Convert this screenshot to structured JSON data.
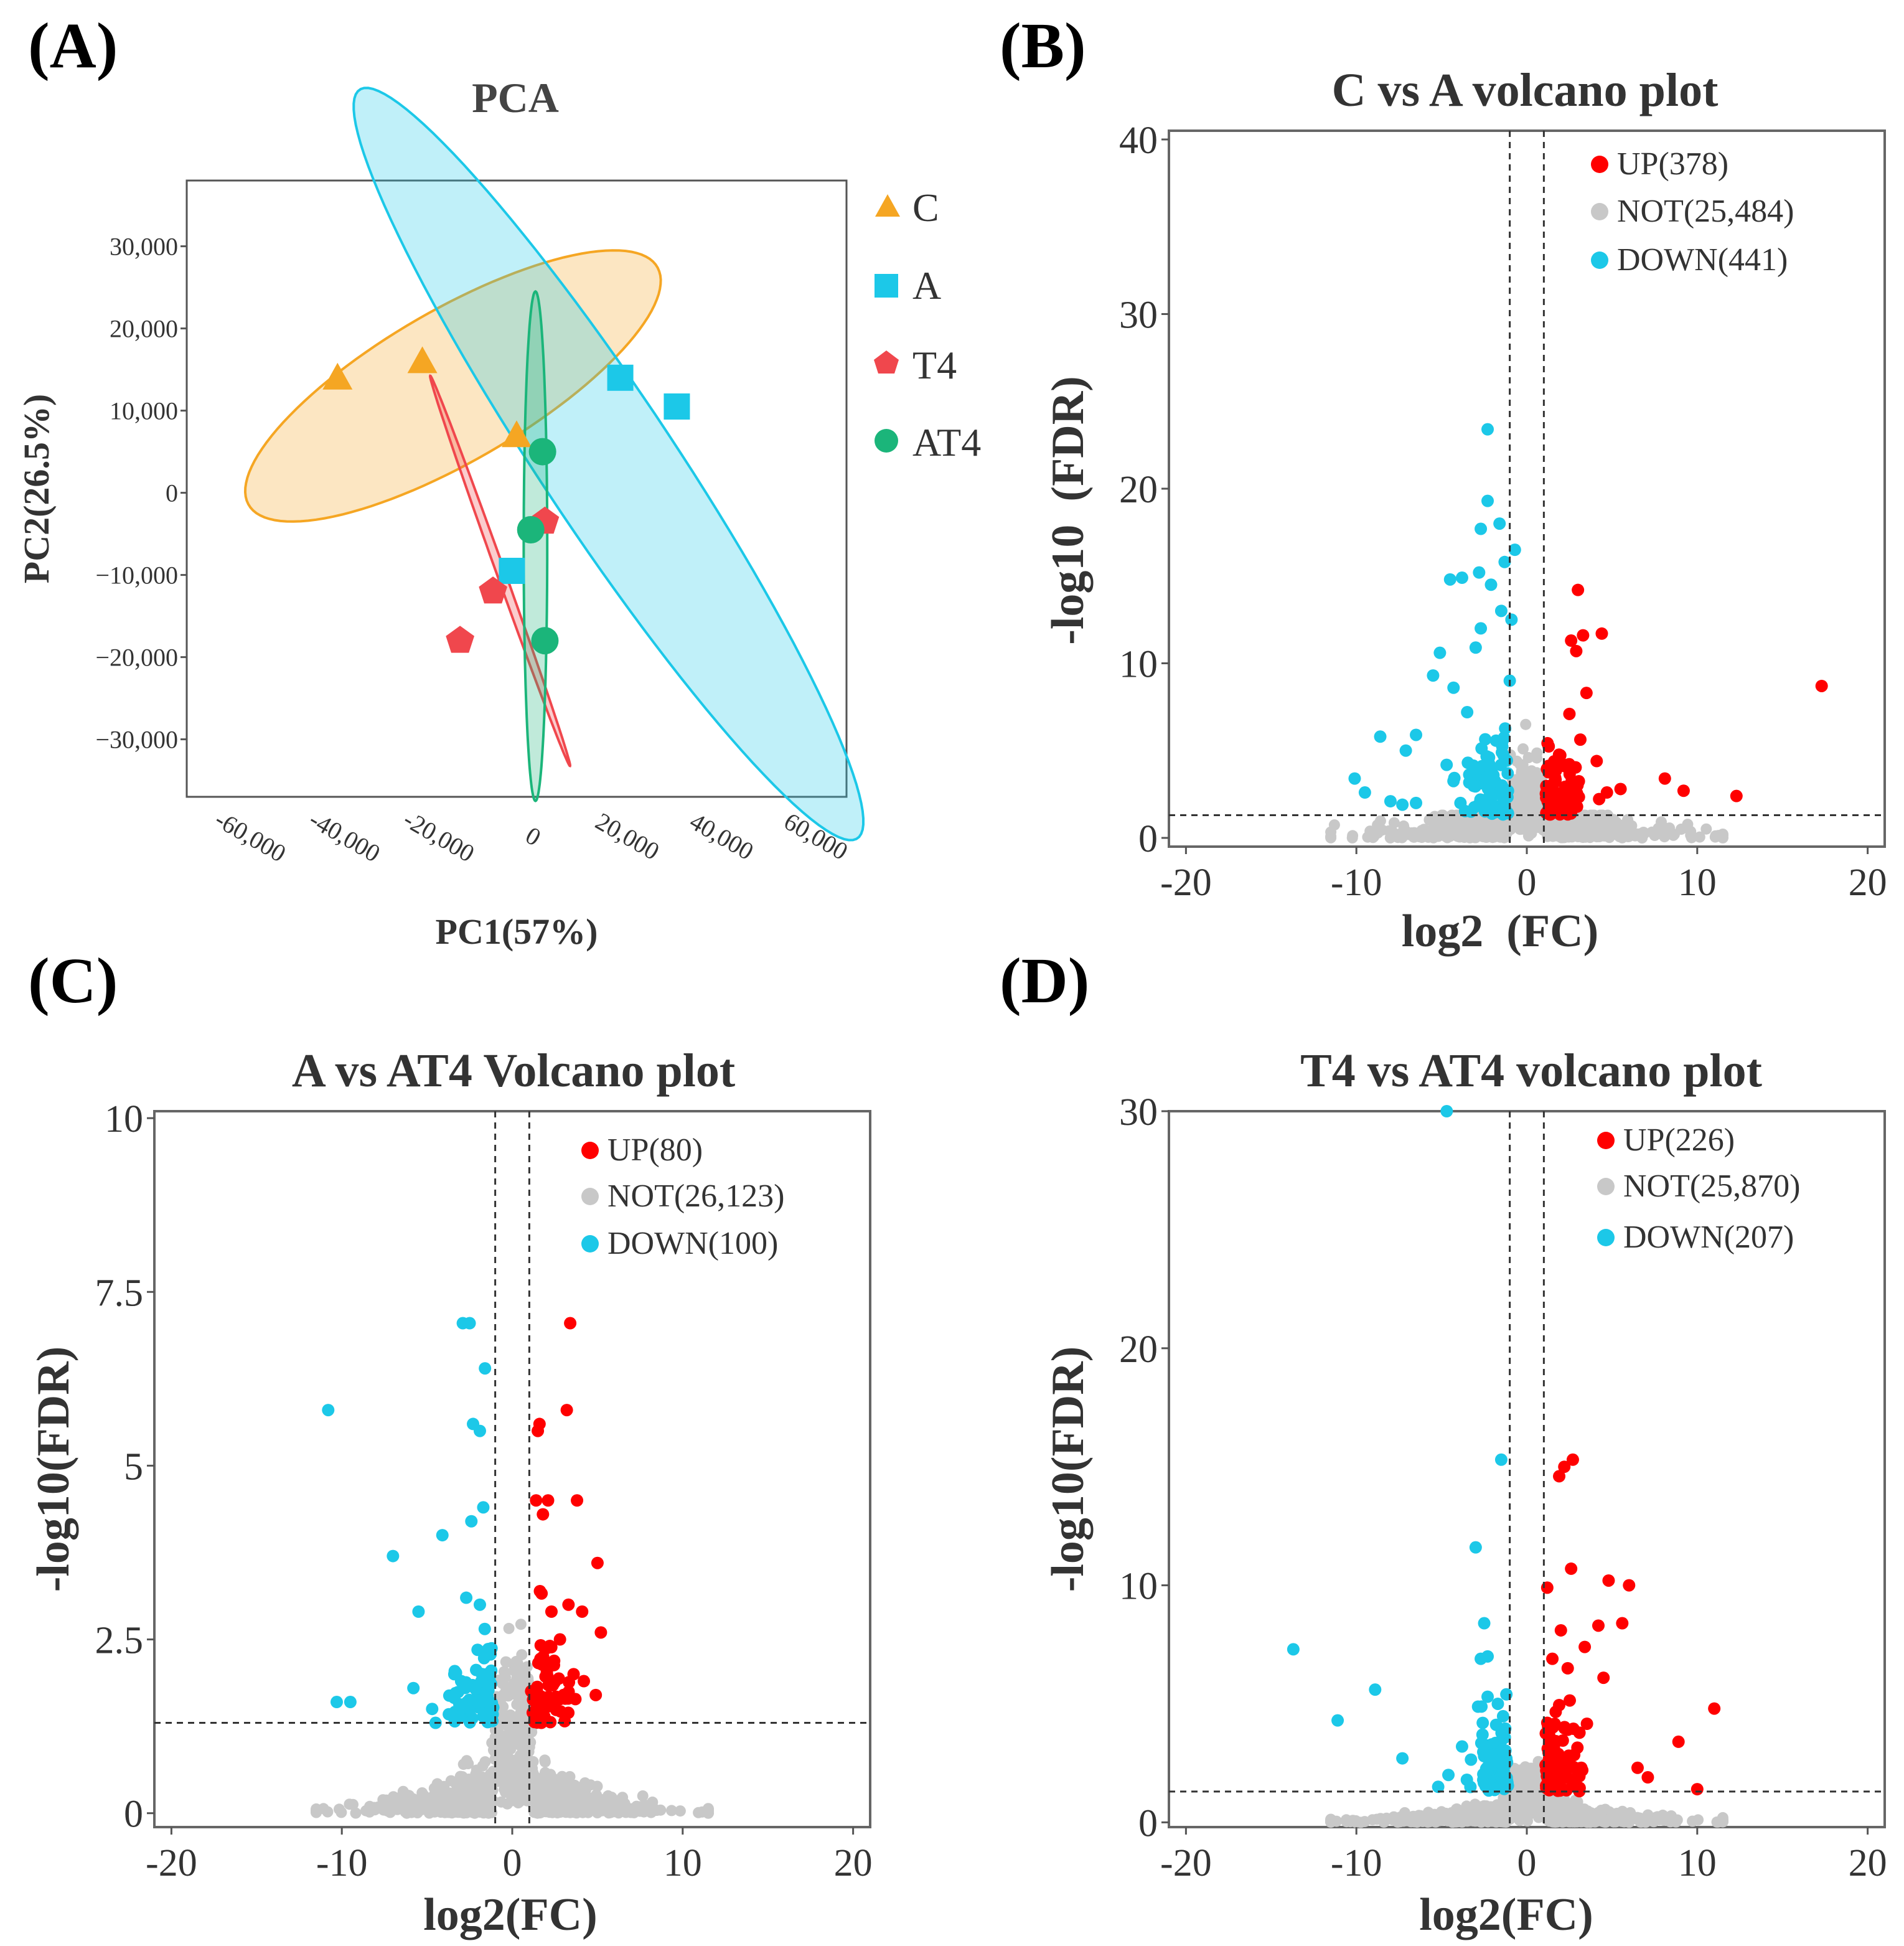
{
  "figure": {
    "panel_labels": [
      "(A)",
      "(B)",
      "(C)",
      "(D)"
    ]
  },
  "chart_data": [
    {
      "panel": "(A)",
      "type": "scatter",
      "title": "PCA",
      "xlabel": "PC1(57%)",
      "ylabel": "PC2(26.5%)",
      "xlim": [
        -70000,
        70000
      ],
      "ylim": [
        -37000,
        38000
      ],
      "x_ticks": [
        -60000,
        -40000,
        -20000,
        0,
        20000,
        40000,
        60000
      ],
      "x_tick_labels": [
        "-60,000",
        "-40,000",
        "-20,000",
        "0",
        "20,000",
        "40,000",
        "60,000"
      ],
      "y_ticks": [
        30000,
        20000,
        10000,
        0,
        -10000,
        -20000,
        -30000
      ],
      "y_tick_labels": [
        "30,000",
        "20,000",
        "10,000",
        "0",
        "−10,000",
        "−20,000",
        "−30,000"
      ],
      "legend_position": "right",
      "series": [
        {
          "name": "C",
          "marker": "triangle",
          "color": "#f5a623",
          "points": [
            [
              -38000,
              14000
            ],
            [
              -20000,
              16000
            ],
            [
              0,
              7000
            ]
          ],
          "ellipse": {
            "cx": -13500,
            "cy": 13000,
            "rx": 46000,
            "ry": 10000,
            "angle_deg": 17
          }
        },
        {
          "name": "A",
          "marker": "square",
          "color": "#1cc8e8",
          "points": [
            [
              22000,
              14000
            ],
            [
              34000,
              10500
            ],
            [
              -1000,
              -9500
            ]
          ],
          "ellipse": {
            "cx": 19500,
            "cy": 3500,
            "rx": 70000,
            "ry": 11000,
            "angle_deg": -40
          }
        },
        {
          "name": "T4",
          "marker": "pentagon",
          "color": "#f0474d",
          "points": [
            [
              -12000,
              -18000
            ],
            [
              -5000,
              -12000
            ],
            [
              6000,
              -3500
            ]
          ],
          "ellipse": {
            "cx": -3500,
            "cy": -9500,
            "rx": 28000,
            "ry": 800,
            "angle_deg": -58
          }
        },
        {
          "name": "AT4",
          "marker": "circle",
          "color": "#1bb57a",
          "points": [
            [
              5500,
              5000
            ],
            [
              3000,
              -4500
            ],
            [
              6000,
              -18000
            ]
          ],
          "ellipse": {
            "cx": 4000,
            "cy": -6500,
            "rx": 2500,
            "ry": 31000,
            "angle_deg": 0
          }
        }
      ]
    },
    {
      "panel": "(B)",
      "type": "scatter",
      "title": "C vs A volcano plot",
      "xlabel": "log2  (FC)",
      "ylabel": "-log10  (FDR)",
      "xlim": [
        -21,
        21
      ],
      "ylim": [
        -0.5,
        40.5
      ],
      "x_ticks": [
        -20,
        -10,
        0,
        10,
        20
      ],
      "y_ticks": [
        0,
        10,
        20,
        30,
        40
      ],
      "fc_threshold": 1,
      "fdr_line": 1.3,
      "legend": [
        {
          "label": "UP(378)",
          "color": "#ff0000"
        },
        {
          "label": "NOT(25,484)",
          "color": "#c8c8c8"
        },
        {
          "label": "DOWN(441)",
          "color": "#1cc8e8"
        }
      ],
      "up_points": [
        [
          17.3,
          8.7
        ],
        [
          12.3,
          2.4
        ],
        [
          9.2,
          2.7
        ],
        [
          8.1,
          3.4
        ],
        [
          5.5,
          2.8
        ],
        [
          4.7,
          2.6
        ],
        [
          4.1,
          4.4
        ],
        [
          3.5,
          8.3
        ],
        [
          3.3,
          11.6
        ],
        [
          3.0,
          14.2
        ],
        [
          2.9,
          10.7
        ],
        [
          2.6,
          11.3
        ],
        [
          2.5,
          7.1
        ],
        [
          2.0,
          4.3
        ],
        [
          1.5,
          3.7
        ],
        [
          4.4,
          11.7
        ]
      ],
      "down_points": [
        [
          -2.3,
          23.4
        ],
        [
          -2.3,
          19.3
        ],
        [
          -1.6,
          18.0
        ],
        [
          -2.7,
          17.7
        ],
        [
          -0.7,
          16.5
        ],
        [
          -3.8,
          14.9
        ],
        [
          -4.5,
          14.8
        ],
        [
          -2.8,
          15.2
        ],
        [
          -2.1,
          14.5
        ],
        [
          -1.3,
          15.8
        ],
        [
          -1.5,
          13.0
        ],
        [
          -2.7,
          12.0
        ],
        [
          -0.9,
          12.5
        ],
        [
          -5.5,
          9.3
        ],
        [
          -5.1,
          10.6
        ],
        [
          -3.0,
          10.9
        ],
        [
          -6.5,
          5.9
        ],
        [
          -7.1,
          5.0
        ],
        [
          -8.6,
          5.8
        ],
        [
          -10.1,
          3.4
        ],
        [
          -9.5,
          2.6
        ],
        [
          -8.0,
          2.1
        ],
        [
          -7.3,
          1.9
        ],
        [
          -6.5,
          2.0
        ],
        [
          -4.3,
          8.6
        ],
        [
          -3.5,
          7.2
        ],
        [
          -1.0,
          9.0
        ]
      ],
      "cloud_scale": {
        "x": 3.0,
        "y": 1.6
      },
      "counts": {
        "up": 378,
        "not": 25484,
        "down": 441
      }
    },
    {
      "panel": "(C)",
      "type": "scatter",
      "title": "A vs AT4 Volcano plot",
      "xlabel": "log2(FC)",
      "ylabel": "-log10(FDR)",
      "xlim": [
        -21,
        21
      ],
      "ylim": [
        -0.2,
        10.1
      ],
      "x_ticks": [
        -20,
        -10,
        0,
        10,
        20
      ],
      "y_ticks": [
        0,
        2.5,
        5,
        7.5,
        10
      ],
      "y_tick_labels": [
        "0",
        "2.5",
        "5",
        "7.5",
        "10"
      ],
      "fc_threshold": 1,
      "fdr_line": 1.3,
      "legend": [
        {
          "label": "UP(80)",
          "color": "#ff0000"
        },
        {
          "label": "NOT(26,123)",
          "color": "#c8c8c8"
        },
        {
          "label": "DOWN(100)",
          "color": "#1cc8e8"
        }
      ],
      "up_points": [
        [
          3.4,
          7.05
        ],
        [
          3.2,
          5.8
        ],
        [
          1.6,
          5.6
        ],
        [
          1.5,
          5.5
        ],
        [
          1.4,
          4.5
        ],
        [
          2.1,
          4.5
        ],
        [
          3.8,
          4.5
        ],
        [
          1.8,
          4.3
        ],
        [
          5.0,
          3.6
        ],
        [
          5.2,
          2.6
        ],
        [
          4.1,
          2.9
        ],
        [
          3.3,
          3.0
        ],
        [
          2.8,
          2.5
        ],
        [
          2.3,
          2.9
        ],
        [
          4.2,
          1.9
        ],
        [
          4.9,
          1.7
        ],
        [
          3.6,
          2.0
        ]
      ],
      "down_points": [
        [
          -2.5,
          7.05
        ],
        [
          -2.9,
          7.05
        ],
        [
          -1.6,
          6.4
        ],
        [
          -2.3,
          5.6
        ],
        [
          -1.9,
          5.5
        ],
        [
          -1.7,
          4.4
        ],
        [
          -2.4,
          4.2
        ],
        [
          -4.1,
          4.0
        ],
        [
          -7.0,
          3.7
        ],
        [
          -5.5,
          2.9
        ],
        [
          -2.7,
          3.1
        ],
        [
          -1.9,
          3.0
        ],
        [
          -10.8,
          5.8
        ],
        [
          -10.3,
          1.6
        ],
        [
          -9.5,
          1.6
        ],
        [
          -5.8,
          1.8
        ],
        [
          -4.7,
          1.5
        ],
        [
          -4.5,
          1.3
        ],
        [
          -3.0,
          1.9
        ],
        [
          -3.4,
          2.0
        ]
      ],
      "cloud_scale": {
        "x": 3.2,
        "y": 0.35
      },
      "counts": {
        "up": 80,
        "not": 26123,
        "down": 100
      }
    },
    {
      "panel": "(D)",
      "type": "scatter",
      "title": "T4 vs AT4 volcano plot",
      "xlabel": "log2(FC)",
      "ylabel": "-log10(FDR)",
      "xlim": [
        -21,
        21
      ],
      "ylim": [
        -0.2,
        30.0
      ],
      "x_ticks": [
        -20,
        -10,
        0,
        10,
        20
      ],
      "y_ticks": [
        0,
        10,
        20,
        30
      ],
      "fc_threshold": 1,
      "fdr_line": 1.3,
      "legend": [
        {
          "label": "UP(226)",
          "color": "#ff0000"
        },
        {
          "label": "NOT(25,870)",
          "color": "#c8c8c8"
        },
        {
          "label": "DOWN(207)",
          "color": "#1cc8e8"
        }
      ],
      "up_points": [
        [
          2.7,
          15.3
        ],
        [
          2.2,
          15.0
        ],
        [
          1.9,
          14.6
        ],
        [
          2.6,
          10.7
        ],
        [
          4.8,
          10.2
        ],
        [
          6.0,
          10.0
        ],
        [
          1.2,
          9.9
        ],
        [
          4.2,
          8.3
        ],
        [
          5.6,
          8.4
        ],
        [
          3.4,
          7.4
        ],
        [
          2.0,
          8.1
        ],
        [
          11.0,
          4.8
        ],
        [
          8.9,
          3.4
        ],
        [
          10.0,
          1.4
        ],
        [
          7.1,
          1.9
        ],
        [
          6.5,
          2.3
        ],
        [
          2.4,
          6.5
        ],
        [
          4.5,
          6.1
        ],
        [
          1.5,
          6.9
        ]
      ],
      "down_points": [
        [
          -4.7,
          30.0
        ],
        [
          -1.5,
          15.3
        ],
        [
          -3.0,
          11.6
        ],
        [
          -13.7,
          7.3
        ],
        [
          -8.9,
          5.6
        ],
        [
          -11.1,
          4.3
        ],
        [
          -7.3,
          2.7
        ],
        [
          -2.5,
          8.4
        ],
        [
          -2.3,
          7.0
        ],
        [
          -2.7,
          6.9
        ],
        [
          -2.3,
          5.3
        ],
        [
          -1.2,
          5.4
        ],
        [
          -5.2,
          1.5
        ],
        [
          -4.6,
          2.0
        ],
        [
          -3.8,
          3.2
        ],
        [
          -2.6,
          3.7
        ],
        [
          -1.7,
          5.0
        ]
      ],
      "cloud_scale": {
        "x": 3.2,
        "y": 0.5
      },
      "counts": {
        "up": 226,
        "not": 25870,
        "down": 207
      }
    }
  ]
}
